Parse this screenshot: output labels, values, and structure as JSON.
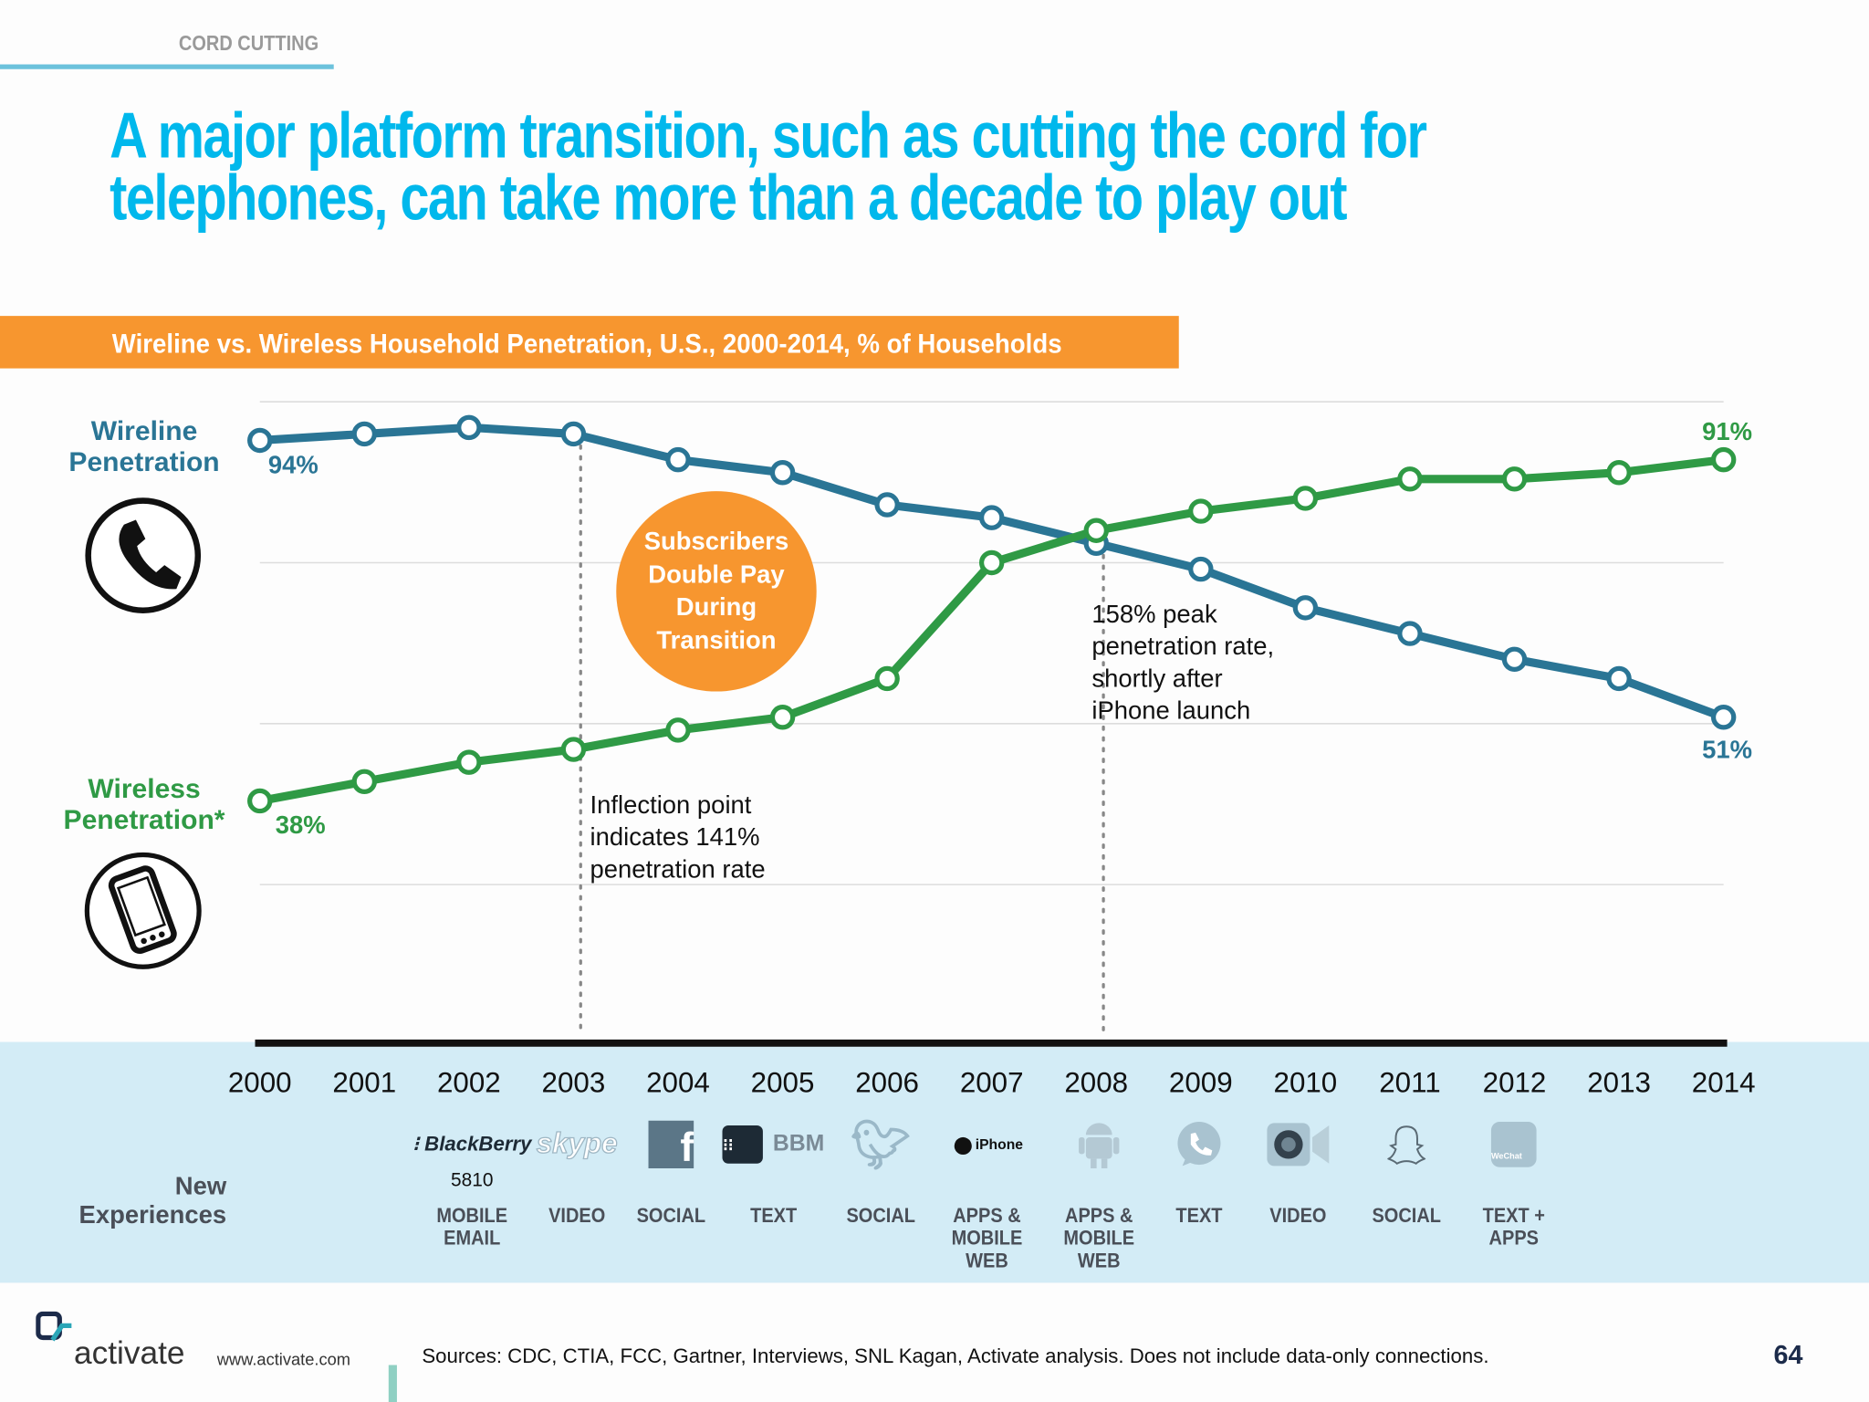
{
  "header": {
    "section": "CORD CUTTING",
    "title": "A major platform transition, such as cutting the cord for telephones, can take more than a decade to play out"
  },
  "chart_data": {
    "type": "line",
    "title": "Wireline vs. Wireless Household Penetration, U.S., 2000-2014, % of Households",
    "categories": [
      "2000",
      "2001",
      "2002",
      "2003",
      "2004",
      "2005",
      "2006",
      "2007",
      "2008",
      "2009",
      "2010",
      "2011",
      "2012",
      "2013",
      "2014"
    ],
    "ylim": [
      0,
      100
    ],
    "grid": true,
    "series": [
      {
        "name": "Wireline Penetration",
        "color": "#2a7595",
        "values": [
          94,
          95,
          96,
          95,
          91,
          89,
          84,
          82,
          78,
          74,
          68,
          64,
          60,
          57,
          51
        ]
      },
      {
        "name": "Wireless Penetration*",
        "color": "#2f9a45",
        "values": [
          38,
          41,
          44,
          46,
          49,
          51,
          57,
          75,
          80,
          83,
          85,
          88,
          88,
          89,
          91
        ]
      }
    ],
    "data_labels": {
      "wireline_start": "94%",
      "wireline_end": "51%",
      "wireless_start": "38%",
      "wireless_end": "91%"
    },
    "annotations": {
      "bubble": "Subscribers Double Pay During Transition",
      "inflection": [
        "Inflection point",
        "indicates 141%",
        "penetration rate"
      ],
      "peak": [
        "158% peak",
        "penetration rate,",
        "shortly after",
        "iPhone launch"
      ]
    }
  },
  "icons": {
    "wireline": "telephone-handset-icon",
    "wireless": "mobile-phone-icon"
  },
  "experiences": {
    "label": "New Experiences",
    "items": [
      {
        "logo": "BlackBerry",
        "sub": "5810",
        "icon": "blackberry-logo-icon",
        "label": "MOBILE EMAIL"
      },
      {
        "logo": "skype",
        "icon": "skype-logo-icon",
        "label": "VIDEO"
      },
      {
        "logo": "f",
        "icon": "facebook-logo-icon",
        "label": "SOCIAL"
      },
      {
        "logo": "BBM",
        "icon": "bbm-logo-icon",
        "label": "TEXT"
      },
      {
        "icon": "twitter-bird-icon",
        "label": "SOCIAL"
      },
      {
        "logo": "iPhone",
        "icon": "apple-iphone-logo-icon",
        "label": "APPS & MOBILE WEB"
      },
      {
        "icon": "android-robot-icon",
        "label": "APPS & MOBILE WEB"
      },
      {
        "icon": "whatsapp-phone-icon",
        "label": "TEXT"
      },
      {
        "icon": "facetime-camera-icon",
        "label": "VIDEO"
      },
      {
        "icon": "snapchat-ghost-icon",
        "label": "SOCIAL"
      },
      {
        "logo": "WeChat",
        "icon": "wechat-bubbles-icon",
        "label": "TEXT + APPS"
      }
    ]
  },
  "footer": {
    "brand": "activate",
    "url": "www.activate.com",
    "sources": "Sources: CDC, CTIA, FCC, Gartner, Interviews, SNL Kagan, Activate analysis. Does not include data-only connections.",
    "page": "64"
  }
}
